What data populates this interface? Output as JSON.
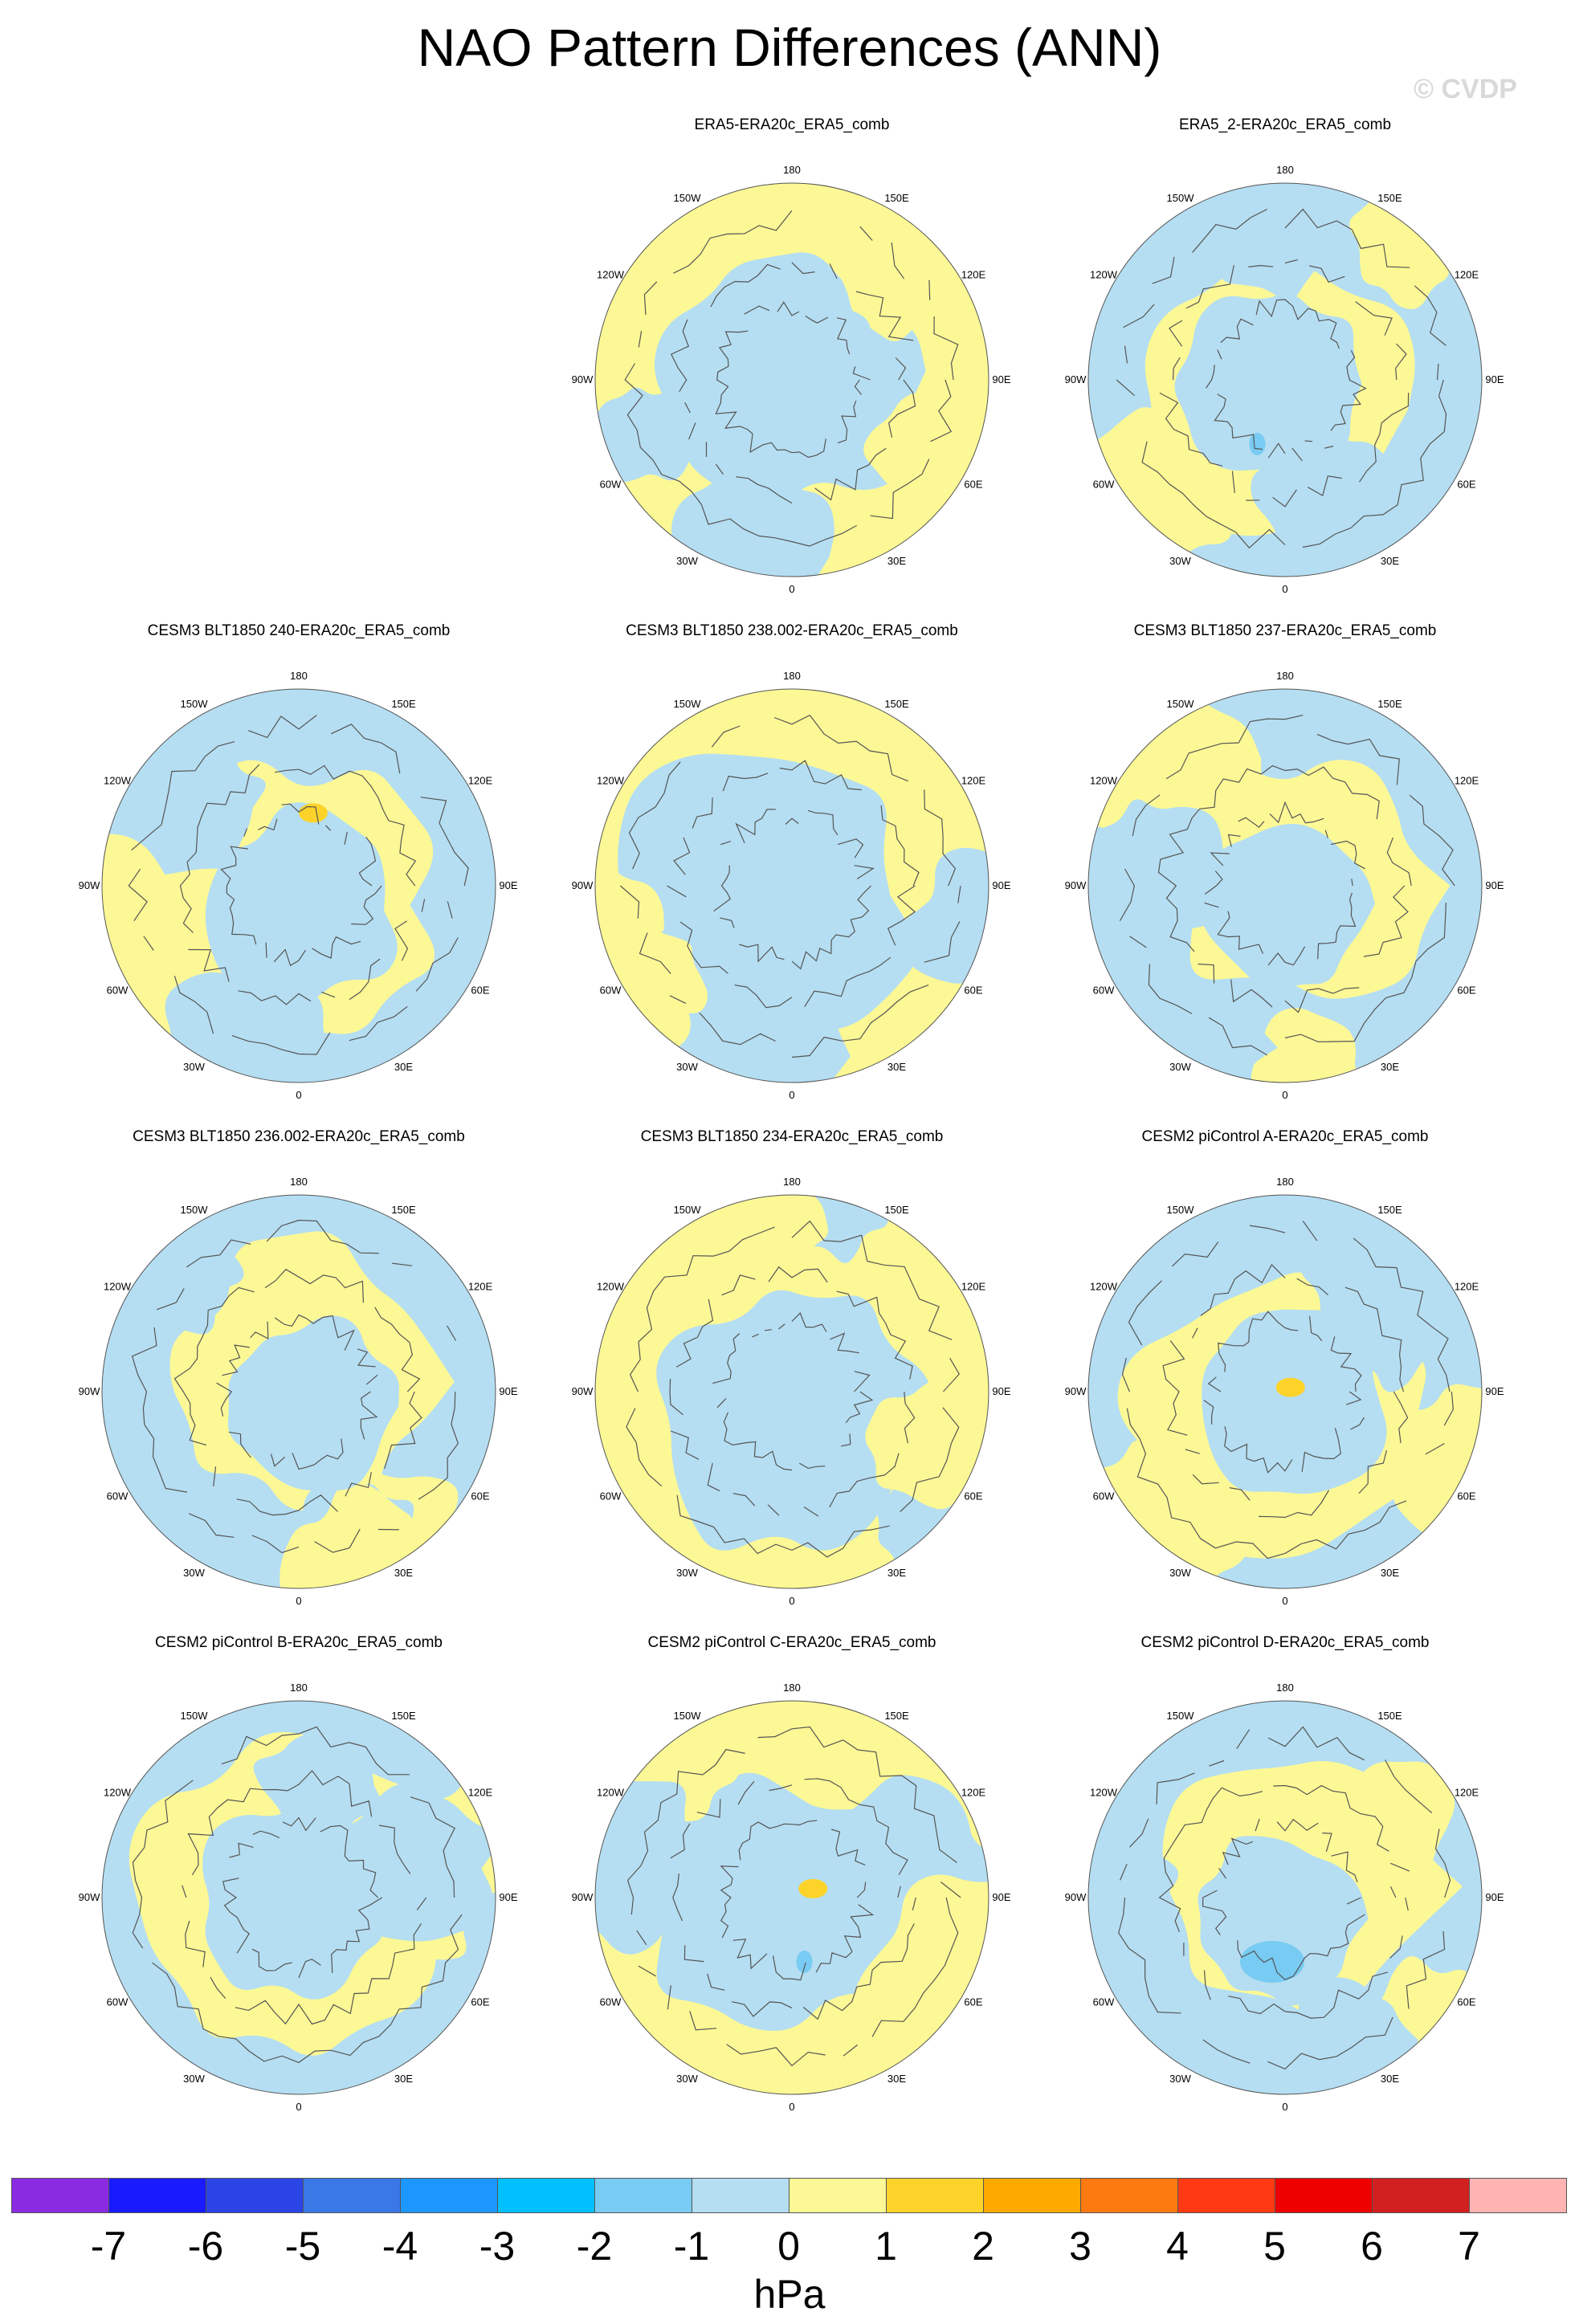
{
  "title": "NAO Pattern Differences (ANN)",
  "watermark": "© CVDP",
  "panels": [
    {
      "title": "ERA5-ERA20c_ERA5_comb",
      "variant": 0
    },
    {
      "title": "ERA5_2-ERA20c_ERA5_comb",
      "variant": 1
    },
    {
      "title": "CESM3 BLT1850 240-ERA20c_ERA5_comb",
      "variant": 2
    },
    {
      "title": "CESM3 BLT1850 238.002-ERA20c_ERA5_comb",
      "variant": 3
    },
    {
      "title": "CESM3 BLT1850 237-ERA20c_ERA5_comb",
      "variant": 4
    },
    {
      "title": "CESM3 BLT1850 236.002-ERA20c_ERA5_comb",
      "variant": 5
    },
    {
      "title": "CESM3 BLT1850 234-ERA20c_ERA5_comb",
      "variant": 6
    },
    {
      "title": "CESM2 piControl A-ERA20c_ERA5_comb",
      "variant": 7
    },
    {
      "title": "CESM2 piControl B-ERA20c_ERA5_comb",
      "variant": 8
    },
    {
      "title": "CESM2 piControl C-ERA20c_ERA5_comb",
      "variant": 9
    },
    {
      "title": "CESM2 piControl D-ERA20c_ERA5_comb",
      "variant": 10
    }
  ],
  "longitude_labels": [
    "180",
    "150E",
    "120E",
    "90E",
    "60E",
    "30E",
    "0",
    "30W",
    "60W",
    "90W",
    "120W",
    "150W"
  ],
  "colorbar": {
    "colors": [
      "#8a2be2",
      "#1a1aff",
      "#2b44e6",
      "#3a78e8",
      "#1e96ff",
      "#00c0ff",
      "#78cbf2",
      "#b5def2",
      "#fcf895",
      "#fdd32a",
      "#fdaa00",
      "#fd7a10",
      "#ff3a12",
      "#ee0000",
      "#d21f1f",
      "#ffb4b4"
    ],
    "labels": [
      "-7",
      "-6",
      "-5",
      "-4",
      "-3",
      "-2",
      "-1",
      "0",
      "1",
      "2",
      "3",
      "4",
      "5",
      "6",
      "7"
    ],
    "units": "hPa"
  },
  "fill_colors": {
    "negative": "#b5def2",
    "positive": "#fcf895",
    "positive_strong": "#fdd32a",
    "negative_strong": "#78cbf2"
  }
}
